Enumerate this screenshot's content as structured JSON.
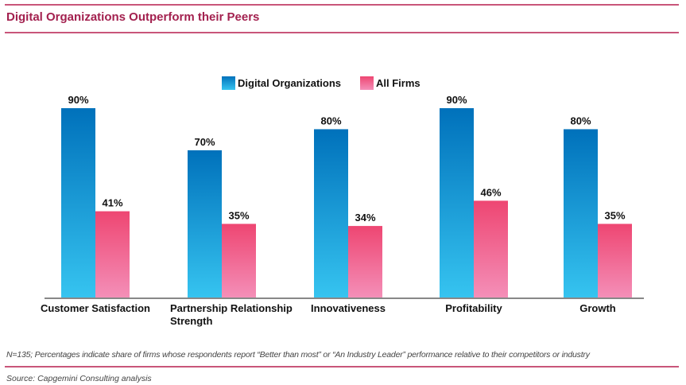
{
  "header": {
    "title": "Digital Organizations Outperform their Peers"
  },
  "footer": {
    "note": "N=135; Percentages indicate share of firms whose respondents report “Better than most” or “An Industry Leader” performance relative to their competitors or industry",
    "source": "Source: Capgemini Consulting analysis"
  },
  "colors": {
    "digital_top": "#0071bb",
    "digital_bottom": "#36c4f0",
    "all_top": "#ee4672",
    "all_bottom": "#f48fb8",
    "rule": "#c9557a",
    "title": "#a3214f",
    "axis": "#888888"
  },
  "chart_data": {
    "type": "bar",
    "title": "Digital Organizations Outperform their Peers",
    "xlabel": "",
    "ylabel": "",
    "ylim": [
      0,
      100
    ],
    "grid": false,
    "legend_position": "top-center",
    "categories": [
      "Customer Satisfaction",
      "Partnership Relationship Strength",
      "Innovativeness",
      "Profitability",
      "Growth"
    ],
    "category_lines": [
      [
        "Customer Satisfaction"
      ],
      [
        "Partnership Relationship",
        "Strength"
      ],
      [
        "Innovativeness"
      ],
      [
        "Profitability"
      ],
      [
        "Growth"
      ]
    ],
    "series": [
      {
        "name": "Digital Organizations",
        "values": [
          90,
          70,
          80,
          90,
          80
        ],
        "labels": [
          "90%",
          "70%",
          "80%",
          "90%",
          "80%"
        ]
      },
      {
        "name": "All Firms",
        "values": [
          41,
          35,
          34,
          46,
          35
        ],
        "labels": [
          "41%",
          "35%",
          "34%",
          "46%",
          "35%"
        ]
      }
    ]
  }
}
